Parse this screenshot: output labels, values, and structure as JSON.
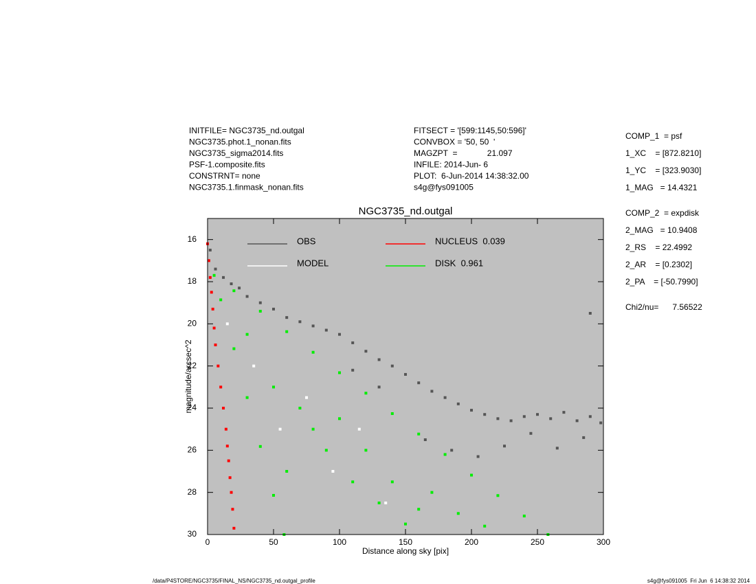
{
  "header": {
    "left": [
      "INITFILE= NGC3735_nd.outgal",
      "NGC3735.phot.1_nonan.fits",
      "NGC3735_sigma2014.fits",
      "PSF-1.composite.fits",
      "CONSTRNT= none",
      "NGC3735.1.finmask_nonan.fits"
    ],
    "middle": [
      "FITSECT = '[599:1145,50:596]'",
      "CONVBOX = '50, 50  '",
      "MAGZPT  =             21.097",
      "INFILE: 2014-Jun- 6",
      "PLOT:  6-Jun-2014 14:38:32.00",
      "s4g@fys091005"
    ],
    "right": [
      [
        "COMP_1  = psf",
        "1_XC    = [872.8210]",
        "1_YC    = [323.9030]",
        "1_MAG   = 14.4321"
      ],
      [
        "COMP_2  = expdisk",
        "2_MAG   = 10.9408",
        "2_RS    = 22.4992",
        "2_AR    = [0.2302]",
        "2_PA    = [-50.7990]"
      ],
      [
        "Chi2/nu=      7.56522"
      ]
    ]
  },
  "footer": {
    "left": "/data/P4STORE/NGC3735/FINAL_NS/NGC3735_nd.outgal_profile",
    "right": "s4g@fys091005  Fri Jun  6 14:38:32 2014"
  },
  "chart_data": {
    "type": "scatter",
    "title": "NGC3735_nd.outgal",
    "xlabel": "Distance along sky [pix]",
    "ylabel": "magnitude/arcsec^2",
    "xlim": [
      0,
      300
    ],
    "xticks": [
      0,
      50,
      100,
      150,
      200,
      250,
      300
    ],
    "ylim": [
      15,
      30
    ],
    "yticks": [
      16,
      18,
      20,
      22,
      24,
      26,
      28,
      30
    ],
    "y_inverted": true,
    "background": "#c0c0c0",
    "series": [
      {
        "name": "OBS",
        "color": "#555555",
        "x": [
          2,
          6,
          12,
          18,
          24,
          30,
          40,
          50,
          60,
          70,
          80,
          90,
          100,
          110,
          120,
          130,
          140,
          150,
          160,
          170,
          180,
          190,
          200,
          210,
          220,
          230,
          240,
          250,
          260,
          270,
          280,
          290,
          298,
          165,
          185,
          205,
          225,
          245,
          265,
          285,
          130,
          110,
          290
        ],
        "values": [
          16.5,
          17.4,
          17.8,
          18.1,
          18.3,
          18.7,
          19.0,
          19.3,
          19.7,
          19.9,
          20.1,
          20.3,
          20.5,
          20.9,
          21.3,
          21.7,
          22.0,
          22.4,
          22.8,
          23.2,
          23.5,
          23.8,
          24.1,
          24.3,
          24.5,
          24.6,
          24.4,
          24.3,
          24.5,
          24.2,
          24.6,
          24.4,
          24.7,
          25.5,
          26.0,
          26.3,
          25.8,
          25.2,
          25.9,
          25.4,
          23.0,
          22.2,
          19.5
        ]
      },
      {
        "name": "MODEL",
        "color": "#ffffff",
        "x": [
          15,
          35,
          55,
          75,
          95,
          115,
          135
        ],
        "values": [
          20,
          22,
          25,
          23.5,
          27,
          25,
          28.5
        ]
      },
      {
        "name": "NUCLEUS  0.039",
        "color": "#ff0000",
        "x": [
          0,
          1,
          2,
          3,
          4,
          5,
          6,
          8,
          10,
          12,
          14,
          15,
          16,
          17,
          18,
          19,
          20
        ],
        "values": [
          16.2,
          17,
          17.8,
          18.5,
          19.3,
          20.2,
          21,
          22,
          23,
          24,
          25,
          25.8,
          26.5,
          27.3,
          28,
          28.8,
          29.7
        ]
      },
      {
        "name": "DISK  0.961",
        "color": "#00ee00",
        "x": [
          5,
          20,
          40,
          60,
          80,
          100,
          120,
          140,
          160,
          180,
          200,
          220,
          240,
          258,
          10,
          20,
          30,
          40,
          50,
          58,
          30,
          50,
          70,
          90,
          110,
          130,
          150,
          170,
          190,
          210,
          60,
          80,
          100,
          120,
          140,
          160
        ],
        "values": [
          17.7,
          18.43,
          19.4,
          20.37,
          21.35,
          22.32,
          23.29,
          24.26,
          25.23,
          26.2,
          27.18,
          28.15,
          29.12,
          30,
          18.86,
          21.18,
          23.5,
          25.82,
          28.14,
          30,
          20.5,
          23,
          24,
          26,
          27.5,
          28.5,
          29.5,
          28,
          29,
          29.6,
          27,
          25,
          24.5,
          26,
          27.5,
          28.8
        ]
      }
    ]
  }
}
